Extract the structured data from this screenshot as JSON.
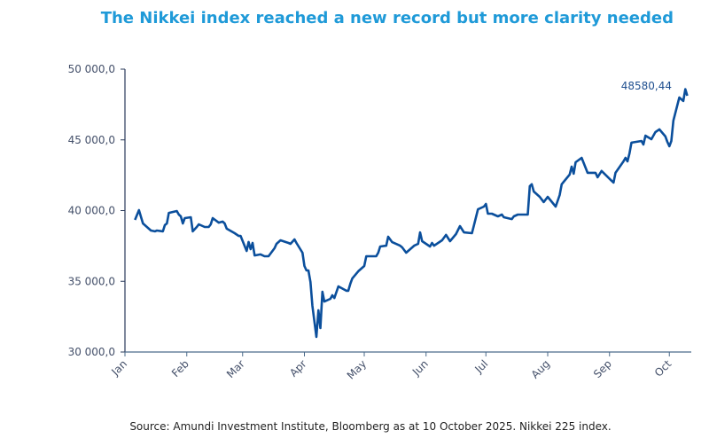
{
  "chart_data": {
    "type": "line",
    "title": "The Nikkei  index reached  a new record  but more clarity  needed",
    "source": "Source:  Amundi Investment Institute, Bloomberg  as at 10 October 2025.  Nikkei 225 index.",
    "xlabel": "",
    "ylabel": "",
    "ylim": [
      30000,
      50000
    ],
    "xlim": [
      "2025-01-01",
      "2025-10-12"
    ],
    "yticks": [
      30000,
      35000,
      40000,
      45000,
      50000
    ],
    "ytick_labels": [
      "30 000,0",
      "35 000,0",
      "40 000,0",
      "45 000,0",
      "50 000,0"
    ],
    "xticks": [
      "2025-01-01",
      "2025-02-01",
      "2025-03-01",
      "2025-04-01",
      "2025-05-01",
      "2025-06-01",
      "2025-07-01",
      "2025-08-01",
      "2025-09-01",
      "2025-10-01"
    ],
    "xtick_labels": [
      "Jan",
      "Feb",
      "Mar",
      "Apr",
      "May",
      "Jun",
      "Jul",
      "Aug",
      "Sep",
      "Oct"
    ],
    "grid": false,
    "line_color": "#0b4f9c",
    "annotation": "48580,44",
    "series": [
      {
        "points": [
          [
            "2025-01-06",
            39340
          ],
          [
            "2025-01-08",
            40030
          ],
          [
            "2025-01-10",
            39090
          ],
          [
            "2025-01-14",
            38590
          ],
          [
            "2025-01-16",
            38530
          ],
          [
            "2025-01-17",
            38590
          ],
          [
            "2025-01-20",
            38530
          ],
          [
            "2025-01-21",
            38970
          ],
          [
            "2025-01-22",
            39090
          ],
          [
            "2025-01-23",
            39840
          ],
          [
            "2025-01-27",
            39970
          ],
          [
            "2025-01-28",
            39720
          ],
          [
            "2025-01-29",
            39590
          ],
          [
            "2025-01-30",
            39090
          ],
          [
            "2025-01-31",
            39470
          ],
          [
            "2025-02-03",
            39530
          ],
          [
            "2025-02-04",
            38530
          ],
          [
            "2025-02-06",
            38840
          ],
          [
            "2025-02-07",
            39030
          ],
          [
            "2025-02-10",
            38840
          ],
          [
            "2025-02-12",
            38840
          ],
          [
            "2025-02-13",
            39030
          ],
          [
            "2025-02-14",
            39470
          ],
          [
            "2025-02-17",
            39150
          ],
          [
            "2025-02-19",
            39220
          ],
          [
            "2025-02-20",
            39090
          ],
          [
            "2025-02-21",
            38720
          ],
          [
            "2025-02-25",
            38400
          ],
          [
            "2025-02-27",
            38210
          ],
          [
            "2025-02-28",
            38210
          ],
          [
            "2025-03-03",
            37150
          ],
          [
            "2025-03-04",
            37780
          ],
          [
            "2025-03-05",
            37270
          ],
          [
            "2025-03-06",
            37710
          ],
          [
            "2025-03-07",
            36830
          ],
          [
            "2025-03-10",
            36900
          ],
          [
            "2025-03-12",
            36770
          ],
          [
            "2025-03-14",
            36770
          ],
          [
            "2025-03-17",
            37340
          ],
          [
            "2025-03-18",
            37650
          ],
          [
            "2025-03-20",
            37900
          ],
          [
            "2025-03-24",
            37710
          ],
          [
            "2025-03-25",
            37650
          ],
          [
            "2025-03-27",
            37960
          ],
          [
            "2025-03-28",
            37710
          ],
          [
            "2025-03-31",
            37020
          ],
          [
            "2025-04-01",
            36080
          ],
          [
            "2025-04-02",
            35770
          ],
          [
            "2025-04-03",
            35770
          ],
          [
            "2025-04-04",
            34950
          ],
          [
            "2025-04-05",
            33260
          ],
          [
            "2025-04-07",
            31070
          ],
          [
            "2025-04-08",
            32950
          ],
          [
            "2025-04-09",
            31690
          ],
          [
            "2025-04-10",
            34260
          ],
          [
            "2025-04-11",
            33570
          ],
          [
            "2025-04-14",
            33760
          ],
          [
            "2025-04-15",
            34010
          ],
          [
            "2025-04-16",
            33820
          ],
          [
            "2025-04-18",
            34640
          ],
          [
            "2025-04-22",
            34330
          ],
          [
            "2025-04-23",
            34330
          ],
          [
            "2025-04-24",
            34830
          ],
          [
            "2025-04-25",
            35200
          ],
          [
            "2025-04-28",
            35710
          ],
          [
            "2025-05-01",
            36080
          ],
          [
            "2025-05-02",
            36770
          ],
          [
            "2025-05-07",
            36770
          ],
          [
            "2025-05-08",
            37020
          ],
          [
            "2025-05-09",
            37460
          ],
          [
            "2025-05-12",
            37520
          ],
          [
            "2025-05-13",
            38150
          ],
          [
            "2025-05-15",
            37770
          ],
          [
            "2025-05-19",
            37520
          ],
          [
            "2025-05-20",
            37400
          ],
          [
            "2025-05-22",
            37020
          ],
          [
            "2025-05-26",
            37520
          ],
          [
            "2025-05-28",
            37650
          ],
          [
            "2025-05-29",
            38460
          ],
          [
            "2025-05-30",
            37840
          ],
          [
            "2025-06-03",
            37460
          ],
          [
            "2025-06-04",
            37710
          ],
          [
            "2025-06-05",
            37520
          ],
          [
            "2025-06-09",
            37900
          ],
          [
            "2025-06-11",
            38280
          ],
          [
            "2025-06-13",
            37840
          ],
          [
            "2025-06-16",
            38340
          ],
          [
            "2025-06-18",
            38900
          ],
          [
            "2025-06-20",
            38460
          ],
          [
            "2025-06-24",
            38400
          ],
          [
            "2025-06-25",
            38960
          ],
          [
            "2025-06-27",
            40090
          ],
          [
            "2025-06-30",
            40280
          ],
          [
            "2025-07-01",
            40470
          ],
          [
            "2025-07-02",
            39780
          ],
          [
            "2025-07-04",
            39780
          ],
          [
            "2025-07-07",
            39590
          ],
          [
            "2025-07-09",
            39720
          ],
          [
            "2025-07-10",
            39530
          ],
          [
            "2025-07-14",
            39400
          ],
          [
            "2025-07-15",
            39590
          ],
          [
            "2025-07-17",
            39720
          ],
          [
            "2025-07-22",
            39720
          ],
          [
            "2025-07-23",
            41730
          ],
          [
            "2025-07-24",
            41860
          ],
          [
            "2025-07-25",
            41350
          ],
          [
            "2025-07-28",
            40970
          ],
          [
            "2025-07-30",
            40600
          ],
          [
            "2025-08-01",
            40970
          ],
          [
            "2025-08-05",
            40280
          ],
          [
            "2025-08-07",
            41100
          ],
          [
            "2025-08-08",
            41860
          ],
          [
            "2025-08-12",
            42550
          ],
          [
            "2025-08-13",
            43110
          ],
          [
            "2025-08-14",
            42610
          ],
          [
            "2025-08-15",
            43420
          ],
          [
            "2025-08-18",
            43730
          ],
          [
            "2025-08-21",
            42670
          ],
          [
            "2025-08-25",
            42670
          ],
          [
            "2025-08-26",
            42360
          ],
          [
            "2025-08-28",
            42800
          ],
          [
            "2025-09-02",
            42110
          ],
          [
            "2025-09-03",
            41980
          ],
          [
            "2025-09-04",
            42670
          ],
          [
            "2025-09-08",
            43480
          ],
          [
            "2025-09-09",
            43730
          ],
          [
            "2025-09-10",
            43480
          ],
          [
            "2025-09-11",
            44050
          ],
          [
            "2025-09-12",
            44800
          ],
          [
            "2025-09-17",
            44920
          ],
          [
            "2025-09-18",
            44670
          ],
          [
            "2025-09-19",
            45300
          ],
          [
            "2025-09-22",
            45050
          ],
          [
            "2025-09-24",
            45550
          ],
          [
            "2025-09-26",
            45740
          ],
          [
            "2025-09-29",
            45240
          ],
          [
            "2025-09-30",
            44860
          ],
          [
            "2025-10-01",
            44550
          ],
          [
            "2025-10-02",
            44920
          ],
          [
            "2025-10-03",
            46360
          ],
          [
            "2025-10-06",
            48000
          ],
          [
            "2025-10-07",
            47870
          ],
          [
            "2025-10-08",
            47750
          ],
          [
            "2025-10-09",
            48580
          ],
          [
            "2025-10-10",
            48120
          ]
        ]
      }
    ]
  }
}
